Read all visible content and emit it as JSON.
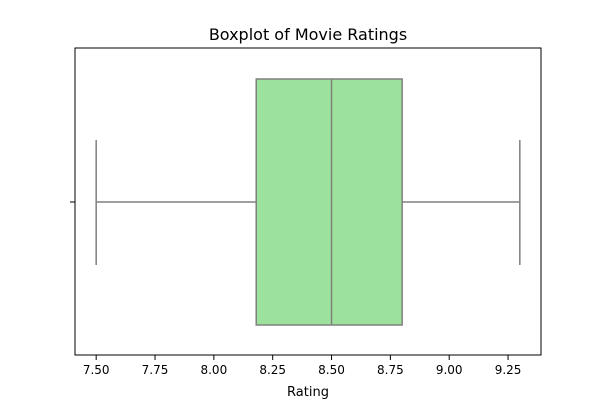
{
  "chart_data": {
    "type": "boxplot",
    "title": "Boxplot of Movie Ratings",
    "xlabel": "Rating",
    "ylabel": "",
    "xlim": [
      7.41,
      9.39
    ],
    "xticks": [
      7.5,
      7.75,
      8.0,
      8.25,
      8.5,
      8.75,
      9.0,
      9.25
    ],
    "xtick_labels": [
      "7.50",
      "7.75",
      "8.00",
      "8.25",
      "8.50",
      "8.75",
      "9.00",
      "9.25"
    ],
    "box": {
      "whisker_low": 7.5,
      "q1": 8.18,
      "median": 8.5,
      "q3": 8.8,
      "whisker_high": 9.3
    },
    "grid": false,
    "colors": {
      "box_fill": "#9de29c",
      "lines": "#808080",
      "axes": "#000000"
    }
  }
}
